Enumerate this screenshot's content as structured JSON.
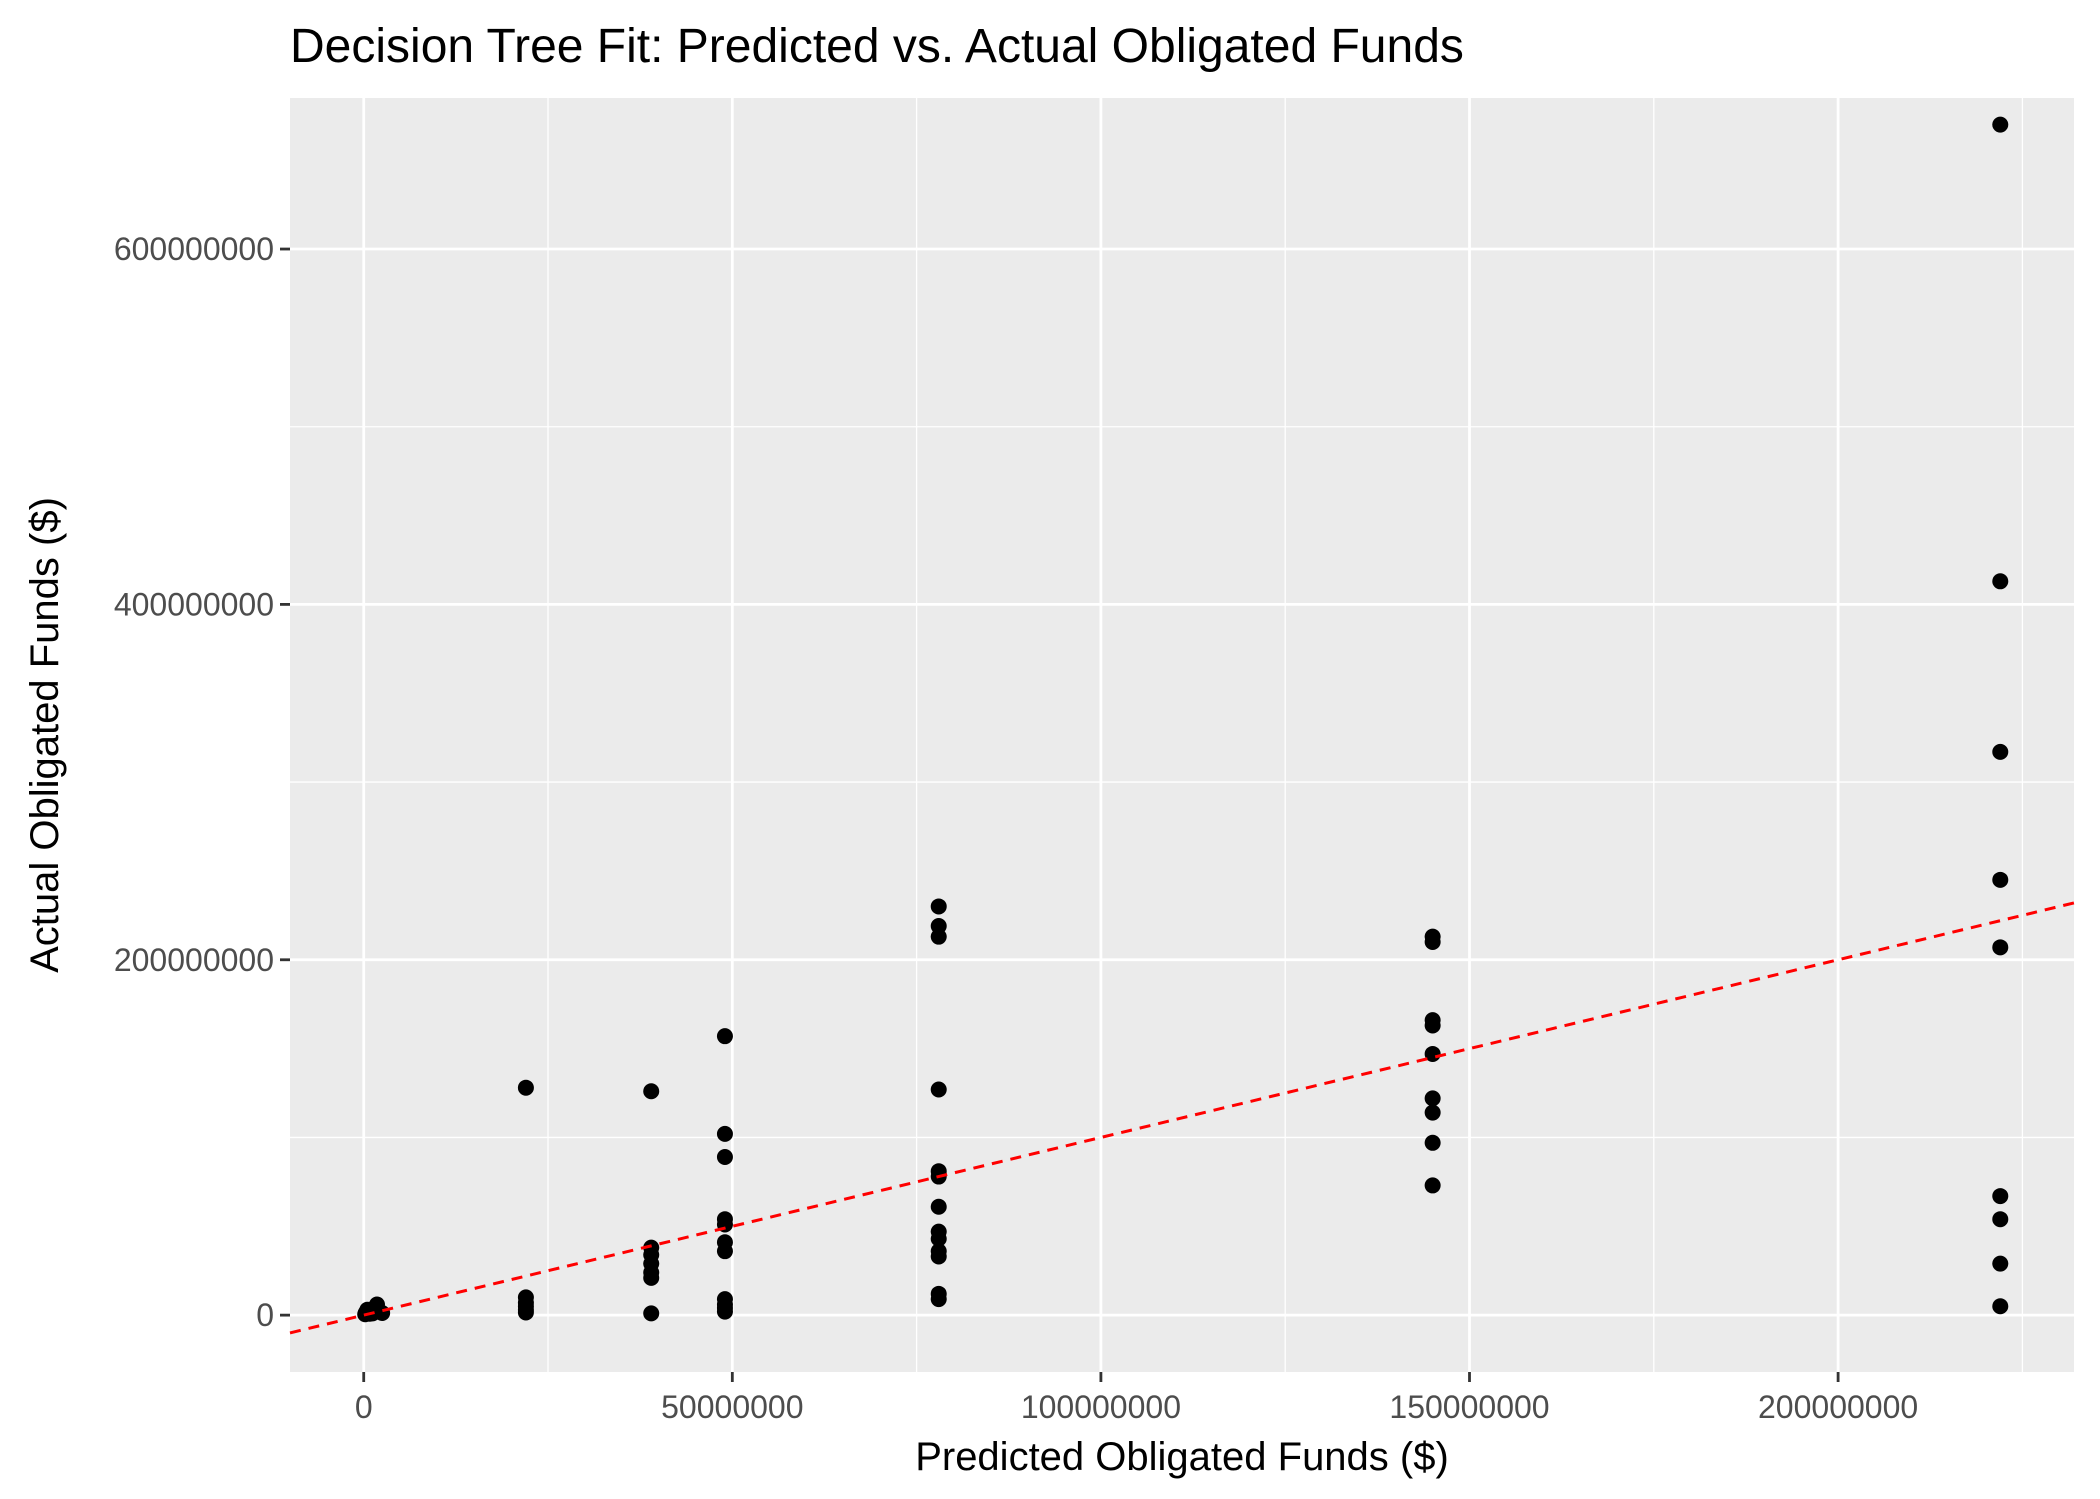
{
  "chart_data": {
    "type": "scatter",
    "title": "Decision Tree Fit: Predicted vs. Actual Obligated Funds",
    "xlabel": "Predicted Obligated Funds ($)",
    "ylabel": "Actual Obligated Funds ($)",
    "xlim": [
      -10000000,
      232000000
    ],
    "ylim": [
      -32000000,
      685000000
    ],
    "x_ticks": [
      0,
      50000000,
      100000000,
      150000000,
      200000000
    ],
    "x_tick_labels": [
      "0",
      "50000000",
      "100000000",
      "150000000",
      "200000000"
    ],
    "y_ticks": [
      0,
      200000000,
      400000000,
      600000000
    ],
    "y_tick_labels": [
      "0",
      "200000000",
      "400000000",
      "600000000"
    ],
    "grid": true,
    "reference_line": {
      "style": "dashed",
      "color": "#ff0000",
      "slope": 1,
      "intercept": 0
    },
    "points_color": "#000000",
    "panel_background": "#ebebeb",
    "points": [
      [
        200000,
        500000
      ],
      [
        300000,
        1500000
      ],
      [
        500000,
        3000000
      ],
      [
        800000,
        800000
      ],
      [
        1000000,
        2500000
      ],
      [
        1200000,
        1000000
      ],
      [
        1500000,
        4000000
      ],
      [
        1800000,
        6000000
      ],
      [
        2000000,
        2000000
      ],
      [
        2500000,
        1200000
      ],
      [
        22000000,
        128000000
      ],
      [
        22000000,
        10000000
      ],
      [
        22000000,
        7000000
      ],
      [
        22000000,
        5000000
      ],
      [
        22000000,
        3000000
      ],
      [
        22000000,
        1500000
      ],
      [
        39000000,
        126000000
      ],
      [
        39000000,
        38000000
      ],
      [
        39000000,
        34000000
      ],
      [
        39000000,
        29000000
      ],
      [
        39000000,
        24000000
      ],
      [
        39000000,
        21000000
      ],
      [
        39000000,
        1000000
      ],
      [
        49000000,
        157000000
      ],
      [
        49000000,
        102000000
      ],
      [
        49000000,
        89000000
      ],
      [
        49000000,
        54000000
      ],
      [
        49000000,
        51000000
      ],
      [
        49000000,
        41000000
      ],
      [
        49000000,
        36000000
      ],
      [
        49000000,
        9000000
      ],
      [
        49000000,
        6000000
      ],
      [
        49000000,
        4000000
      ],
      [
        49000000,
        2000000
      ],
      [
        78000000,
        230000000
      ],
      [
        78000000,
        219000000
      ],
      [
        78000000,
        213000000
      ],
      [
        78000000,
        127000000
      ],
      [
        78000000,
        81000000
      ],
      [
        78000000,
        78000000
      ],
      [
        78000000,
        61000000
      ],
      [
        78000000,
        47000000
      ],
      [
        78000000,
        43000000
      ],
      [
        78000000,
        36000000
      ],
      [
        78000000,
        33000000
      ],
      [
        78000000,
        12000000
      ],
      [
        78000000,
        9000000
      ],
      [
        145000000,
        213000000
      ],
      [
        145000000,
        210000000
      ],
      [
        145000000,
        166000000
      ],
      [
        145000000,
        163000000
      ],
      [
        145000000,
        147000000
      ],
      [
        145000000,
        122000000
      ],
      [
        145000000,
        114000000
      ],
      [
        145000000,
        97000000
      ],
      [
        145000000,
        73000000
      ],
      [
        222000000,
        670000000
      ],
      [
        222000000,
        413000000
      ],
      [
        222000000,
        317000000
      ],
      [
        222000000,
        245000000
      ],
      [
        222000000,
        207000000
      ],
      [
        222000000,
        67000000
      ],
      [
        222000000,
        54000000
      ],
      [
        222000000,
        29000000
      ],
      [
        222000000,
        5000000
      ]
    ]
  }
}
